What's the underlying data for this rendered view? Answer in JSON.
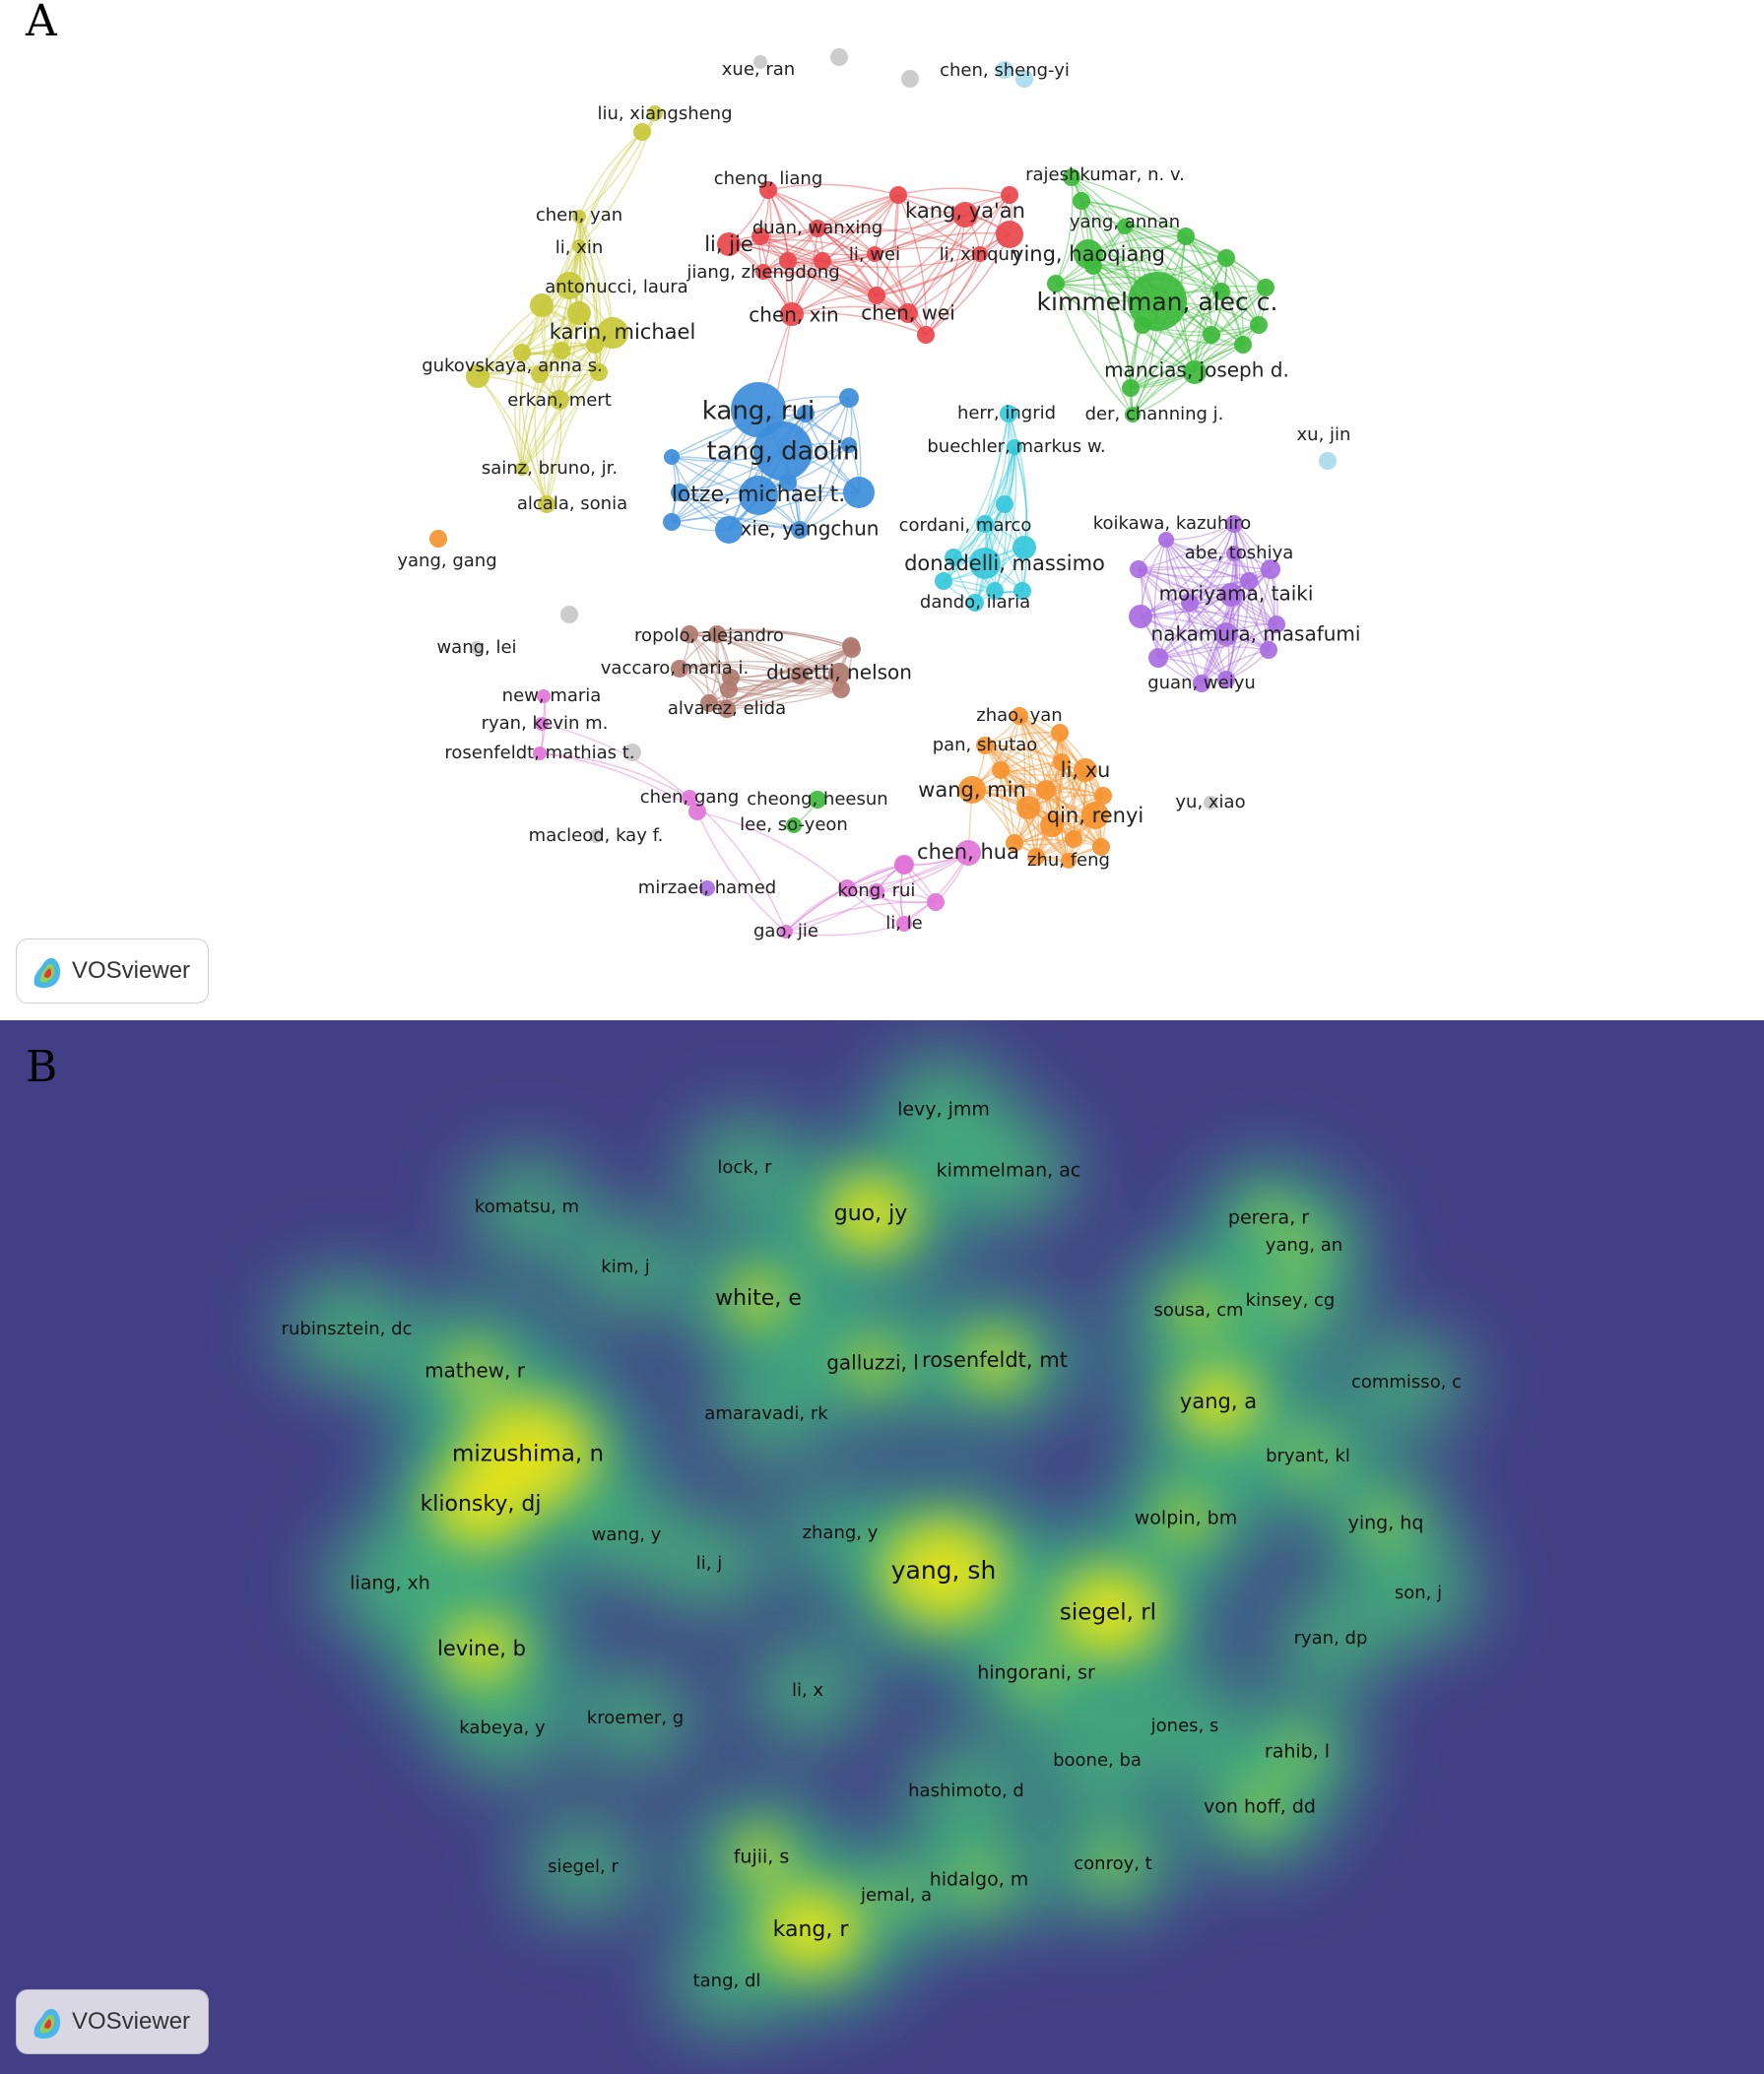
{
  "panels": {
    "a_label": "A",
    "b_label": "B",
    "brand": "VOSviewer"
  },
  "colors": {
    "red": "#e8474c",
    "green": "#3dba3c",
    "blue": "#3d8ddb",
    "yellow": "#c8c83a",
    "cyan": "#35c8dc",
    "purple": "#a86ce0",
    "brown": "#b07a6e",
    "orange": "#f5922f",
    "pink": "#e075d8",
    "grey": "#c8c8c8",
    "lightblue": "#a8dcea",
    "heat_background": "#433f86"
  },
  "network_nodes": [
    {
      "label": "xue, ran",
      "c": "grey"
    },
    {
      "label": "chen, sheng-yi",
      "c": "lightblue"
    },
    {
      "label": "liu, xiangsheng",
      "c": "yellow"
    },
    {
      "label": "cheng, liang",
      "c": "red"
    },
    {
      "label": "rajeshkumar, n. v.",
      "c": "green"
    },
    {
      "label": "kang, ya'an",
      "c": "red"
    },
    {
      "label": "yang, annan",
      "c": "green"
    },
    {
      "label": "duan, wanxing",
      "c": "red"
    },
    {
      "label": "li, jie",
      "c": "red"
    },
    {
      "label": "li, wei",
      "c": "red"
    },
    {
      "label": "li, xinqun",
      "c": "red"
    },
    {
      "label": "ying, haoqiang",
      "c": "green"
    },
    {
      "label": "jiang, zhengdong",
      "c": "red"
    },
    {
      "label": "kimmelman, alec c.",
      "c": "green"
    },
    {
      "label": "chen, xin",
      "c": "red"
    },
    {
      "label": "chen, wei",
      "c": "red"
    },
    {
      "label": "chen, yan",
      "c": "yellow"
    },
    {
      "label": "li, xin",
      "c": "yellow"
    },
    {
      "label": "antonucci, laura",
      "c": "yellow"
    },
    {
      "label": "karin, michael",
      "c": "yellow"
    },
    {
      "label": "gukovskaya, anna s.",
      "c": "yellow"
    },
    {
      "label": "erkan, mert",
      "c": "yellow"
    },
    {
      "label": "mancias, joseph d.",
      "c": "green"
    },
    {
      "label": "der, channing j.",
      "c": "green"
    },
    {
      "label": "kang, rui",
      "c": "blue"
    },
    {
      "label": "tang, daolin",
      "c": "blue"
    },
    {
      "label": "lotze, michael t.",
      "c": "blue"
    },
    {
      "label": "xie, yangchun",
      "c": "blue"
    },
    {
      "label": "herr, ingrid",
      "c": "cyan"
    },
    {
      "label": "buechler, markus w.",
      "c": "cyan"
    },
    {
      "label": "xu, jin",
      "c": "lightblue"
    },
    {
      "label": "sainz, bruno, jr.",
      "c": "yellow"
    },
    {
      "label": "alcala, sonia",
      "c": "yellow"
    },
    {
      "label": "yang, gang",
      "c": "orange"
    },
    {
      "label": "cordani, marco",
      "c": "cyan"
    },
    {
      "label": "donadelli, massimo",
      "c": "cyan"
    },
    {
      "label": "dando, ilaria",
      "c": "cyan"
    },
    {
      "label": "koikawa, kazuhiro",
      "c": "purple"
    },
    {
      "label": "abe, toshiya",
      "c": "purple"
    },
    {
      "label": "moriyama, taiki",
      "c": "purple"
    },
    {
      "label": "nakamura, masafumi",
      "c": "purple"
    },
    {
      "label": "guan, weiyu",
      "c": "purple"
    },
    {
      "label": "wang, lei",
      "c": "grey"
    },
    {
      "label": "ropolo, alejandro",
      "c": "brown"
    },
    {
      "label": "vaccaro, maria i.",
      "c": "brown"
    },
    {
      "label": "dusetti, nelson",
      "c": "brown"
    },
    {
      "label": "alvarez, elida",
      "c": "brown"
    },
    {
      "label": "new, maria",
      "c": "pink"
    },
    {
      "label": "ryan, kevin m.",
      "c": "pink"
    },
    {
      "label": "rosenfeldt, mathias t.",
      "c": "pink"
    },
    {
      "label": "zhao, yan",
      "c": "orange"
    },
    {
      "label": "pan, shutao",
      "c": "orange"
    },
    {
      "label": "li, xu",
      "c": "orange"
    },
    {
      "label": "wang, min",
      "c": "orange"
    },
    {
      "label": "qin, renyi",
      "c": "orange"
    },
    {
      "label": "chen, hua",
      "c": "pink"
    },
    {
      "label": "zhu, feng",
      "c": "orange"
    },
    {
      "label": "kong, rui",
      "c": "pink"
    },
    {
      "label": "li, le",
      "c": "pink"
    },
    {
      "label": "chen, gang",
      "c": "pink"
    },
    {
      "label": "cheong, heesun",
      "c": "green"
    },
    {
      "label": "lee, so-yeon",
      "c": "green"
    },
    {
      "label": "macleod, kay f.",
      "c": "grey"
    },
    {
      "label": "mirzaei, hamed",
      "c": "purple"
    },
    {
      "label": "gao, jie",
      "c": "pink"
    },
    {
      "label": "yu, xiao",
      "c": "grey"
    }
  ],
  "heat_labels": [
    "levy, jmm",
    "lock, r",
    "kimmelman, ac",
    "guo, jy",
    "komatsu, m",
    "perera, r",
    "yang, an",
    "kim, j",
    "white, e",
    "kinsey, cg",
    "sousa, cm",
    "rubinsztein, dc",
    "galluzzi, l",
    "rosenfeldt, mt",
    "mathew, r",
    "commisso, c",
    "yang, a",
    "amaravadi, rk",
    "mizushima, n",
    "bryant, kl",
    "klionsky, dj",
    "wolpin, bm",
    "wang, y",
    "zhang, y",
    "ying, hq",
    "li, j",
    "yang, sh",
    "liang, xh",
    "siegel, rl",
    "son, j",
    "ryan, dp",
    "levine, b",
    "hingorani, sr",
    "li, x",
    "kroemer, g",
    "kabeya, y",
    "jones, s",
    "rahib, l",
    "boone, ba",
    "hashimoto, d",
    "von hoff, dd",
    "fujii, s",
    "conroy, t",
    "siegel, r",
    "hidalgo, m",
    "jemal, a",
    "kang, r",
    "tang, dl"
  ]
}
